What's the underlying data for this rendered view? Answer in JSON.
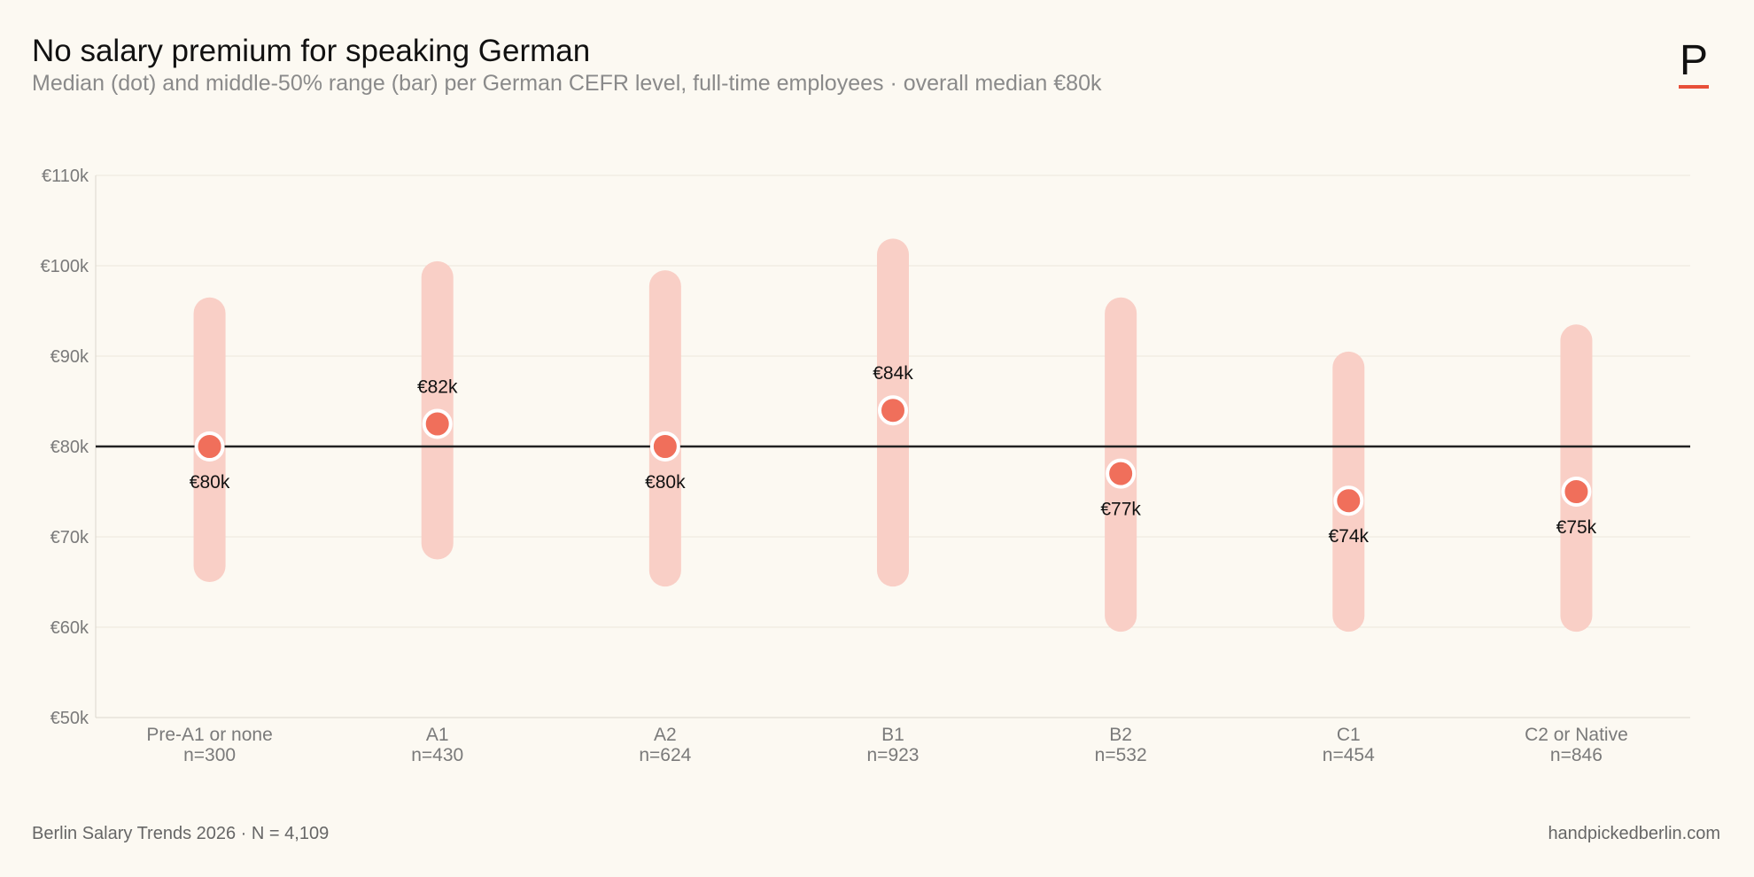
{
  "header": {
    "title": "No salary premium for speaking German",
    "subtitle": "Median (dot) and middle-50% range (bar) per German CEFR level, full-time employees  ·  overall median €80k"
  },
  "logo": {
    "letter": "P",
    "accent_color": "#e8503a"
  },
  "footer": {
    "source": "Berlin Salary Trends 2026  ·  N = 4,109",
    "site": "handpickedberlin.com"
  },
  "colors": {
    "background": "#fcf9f2",
    "range_bar": "#f9cfc6",
    "median_dot": "#f06f5b",
    "reference_line": "#222222",
    "grid": "#ebe6dc",
    "tick_text": "#7a7a7a"
  },
  "chart_data": {
    "type": "range-dot",
    "ylim": [
      50,
      110
    ],
    "yticks": [
      50,
      60,
      70,
      80,
      90,
      100,
      110
    ],
    "ytick_labels": [
      "€50k",
      "€60k",
      "€70k",
      "€80k",
      "€90k",
      "€100k",
      "€110k"
    ],
    "reference_line": 80,
    "grid": true,
    "categories": [
      "Pre-A1 or none",
      "A1",
      "A2",
      "B1",
      "B2",
      "C1",
      "C2 or Native"
    ],
    "counts": [
      "n=300",
      "n=430",
      "n=624",
      "n=923",
      "n=532",
      "n=454",
      "n=846"
    ],
    "medians": [
      80,
      82.5,
      80,
      84,
      77,
      74,
      75
    ],
    "median_labels": [
      "€80k",
      "€82k",
      "€80k",
      "€84k",
      "€77k",
      "€74k",
      "€75k"
    ],
    "median_label_position": [
      "below",
      "above",
      "below",
      "above",
      "below",
      "below",
      "below"
    ],
    "q1": [
      65,
      67.5,
      64.5,
      64.5,
      59.5,
      59.5,
      59.5
    ],
    "q3": [
      96.5,
      100.5,
      99.5,
      103,
      96.5,
      90.5,
      93.5
    ]
  }
}
